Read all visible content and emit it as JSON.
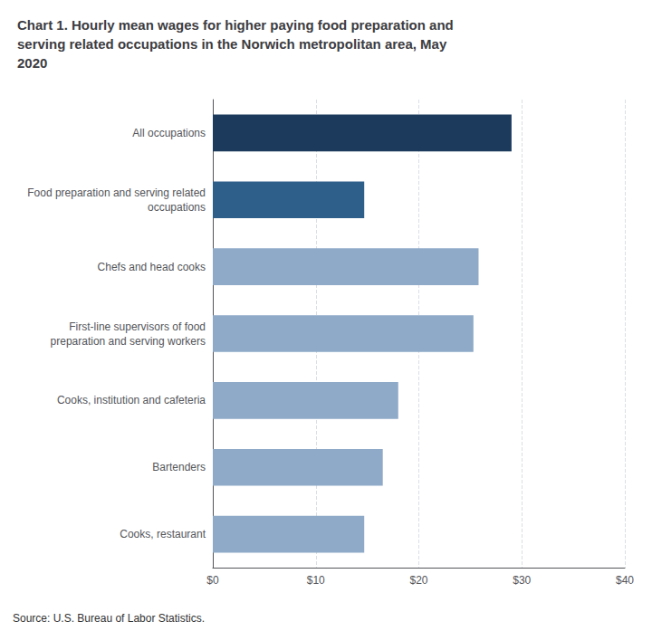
{
  "chart_data": {
    "type": "bar",
    "orientation": "horizontal",
    "title": "Chart 1. Hourly mean wages for higher paying food preparation and\nserving related occupations in the Norwich metropolitan area, May\n2020",
    "categories": [
      "All occupations",
      "Food preparation and serving related\noccupations",
      "Chefs and head cooks",
      "First-line supervisors of food\npreparation and serving workers",
      "Cooks, institution and cafeteria",
      "Bartenders",
      "Cooks, restaurant"
    ],
    "values": [
      29.0,
      14.7,
      25.8,
      25.3,
      18.0,
      16.5,
      14.7
    ],
    "colors": [
      "#1b3a5c",
      "#2e5f8a",
      "#8eaac8",
      "#8eaac8",
      "#8eaac8",
      "#8eaac8",
      "#8eaac8"
    ],
    "xlim": [
      0,
      40
    ],
    "xticks": [
      {
        "value": 0,
        "label": "$0"
      },
      {
        "value": 10,
        "label": "$10"
      },
      {
        "value": 20,
        "label": "$20"
      },
      {
        "value": 30,
        "label": "$30"
      },
      {
        "value": 40,
        "label": "$40"
      }
    ],
    "grid": true,
    "annotations": [
      "Source: U.S. Bureau of Labor Statistics."
    ]
  }
}
